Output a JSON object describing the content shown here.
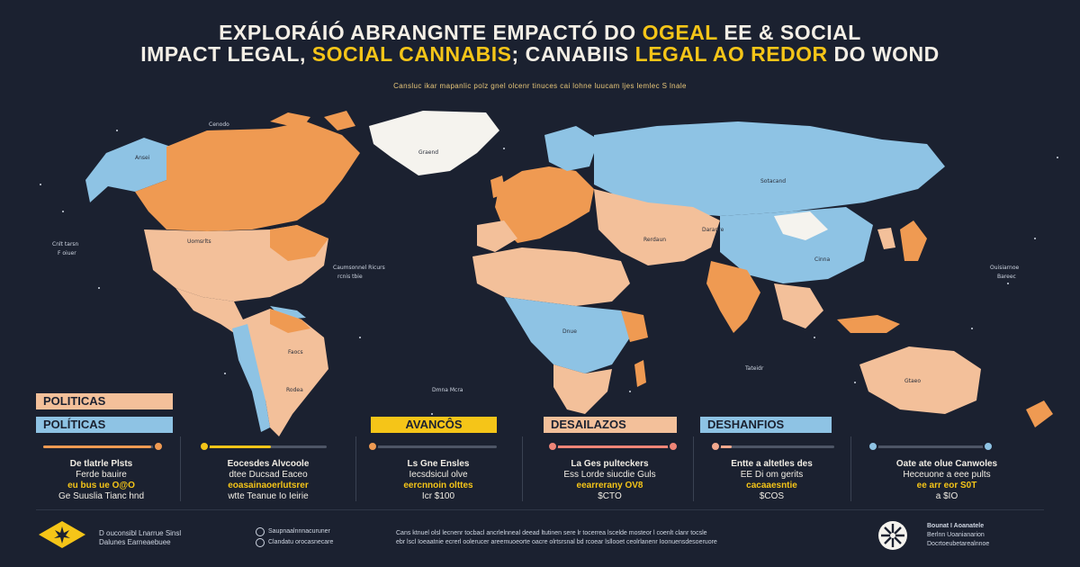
{
  "header": {
    "title_line1_a": "EXPLORÁIÓ ABRANGNTE EMPACTÓ DO ",
    "title_line1_hl": "OGEAL",
    "title_line1_b": " EE & SOCIAL",
    "title_line2_a": "IMPACT LEGAL, ",
    "title_line2_hl1": "SOCIAL CANNABIS",
    "title_line2_b": "; CANABIIS ",
    "title_line2_hl2": "LEGAL AO REDOR",
    "title_line2_c": " DO WOND",
    "subtitle": "Cansluc ikar mapanlic polz gnel olcenr tinuces cai lohne luucam ljes lemlec S lnale"
  },
  "map": {
    "colors": {
      "orange": "#ef9a52",
      "peach": "#f3c09a",
      "blue": "#8ec3e4",
      "white": "#f5f3ee",
      "ocean": "#1b2130"
    },
    "labels": {
      "greenland": "Graend",
      "canada": "Cenodo",
      "usa": "Uomsrlts",
      "alaska": "Ansei",
      "atlantic": "Caumsonnel Ricurs",
      "atlantic2": "rcnis tbie",
      "pacific_w": "Cnlt tarsn",
      "pacific_w2": "F oiuer",
      "russia": "Sotacand",
      "china": "Daranre",
      "china2": "Cinna",
      "mongolia": "Rerdaun",
      "pacific_e": "Ouisiarnoe",
      "pacific_e2": "Bareec",
      "indian": "Tateidr",
      "south_atlantic": "Dmna Mcra",
      "brazil": "Faocs",
      "peru": "Rodea",
      "south": "Dnue",
      "south2": "Gtaeo"
    }
  },
  "tags": {
    "politicas_1": "POLITICAS",
    "politicas_2": "POLÍTICAS",
    "avancos": "AVANCÔS",
    "desafios": "DESAILAZOS",
    "deshanfios": "DESHANFIOS"
  },
  "colors": {
    "orange": "#ef9a52",
    "yellow": "#f5c518",
    "peach": "#f3a98e",
    "coral": "#ef8577",
    "blue": "#8ec3e4"
  },
  "progress": [
    {
      "value": 0.92,
      "color": "#ef9a52",
      "dot": "end"
    },
    {
      "value": 0.55,
      "color": "#f5c518",
      "dot": "start"
    },
    {
      "value": 0.0,
      "color": "#ef9a52",
      "dot": "start"
    },
    {
      "value": 0.95,
      "color": "#ef8577",
      "dot": "both"
    },
    {
      "value": 0.15,
      "color": "#f3a98e",
      "dot": "start"
    },
    {
      "value": 0.0,
      "color": "#8ec3e4",
      "dot": "both"
    }
  ],
  "columns": [
    {
      "l1": "De tlatrle Plsts",
      "l2": "Ferde bauire",
      "val": "eu bus ue O@O",
      "l4": "Ge Suuslia Tianc hnd"
    },
    {
      "l1": "Eocesdes Alvcoole",
      "l2": "dtee Ducsad Eaceo",
      "val": "eoasainaoerlutsrer",
      "l4": "wtte Teanue Io Ieirie"
    },
    {
      "l1": "Ls Gne Ensles",
      "l2": "Iecsdsicul olve",
      "val": "eercnnoin olttes",
      "l4": "Icr $100"
    },
    {
      "l1": "La Ges pulteckers",
      "l2": "Ess Lorde siucdie Guls",
      "val": "eearrerany OV8",
      "l4": "$CTO"
    },
    {
      "l1": "Entte a altetles des",
      "l2": "EE Di om gerits",
      "val": "cacaaesntie",
      "l4": "$COS"
    },
    {
      "l1": "Oate ate olue Canwoles",
      "l2": "Heceuone a eee pults",
      "val": "ee arr eor S0T",
      "l4": "a $IO"
    }
  ],
  "footer": {
    "left_l1": "D ouconsibl Lnarrue Sinsl",
    "left_l2": "Dalunes Earneaebuee",
    "mid_l1": "Saupnaalnnnacuruner",
    "mid_l2": "Clandatu orocasnecare",
    "center_l1": "Cans ktnuel olsl lecnenr tocbacl ancrlelnneal deead ltutinen sere lr tocerrea lscelde mosteor l coenlt clanr tocsle",
    "center_l2": "ebr lscl Ioeaatnie ecrerl oolerucer areemuoeorte oacre olrtsrsnal bd rcoear lsllooet ceolrlanenr Ioonuensdesoeruore",
    "right_l1": "Bounat I Aoanatele",
    "right_l2": "Berlnn Uoanianarion",
    "right_l3": "Docrtoeubetarealnnoe"
  }
}
